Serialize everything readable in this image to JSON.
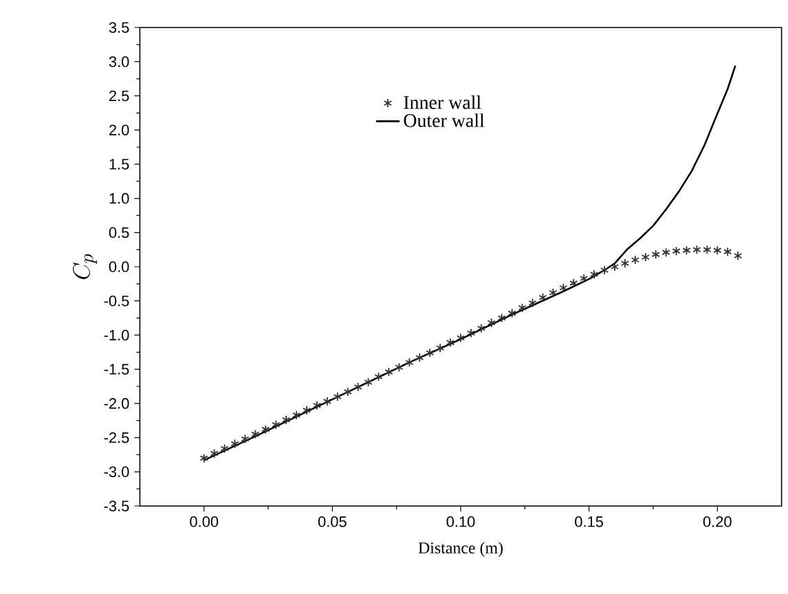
{
  "chart_data": {
    "type": "line",
    "xlabel": "Distance (m)",
    "ylabel": "C_p",
    "xlim": [
      -0.025,
      0.225
    ],
    "ylim": [
      -3.5,
      3.5
    ],
    "xticks": [
      {
        "value": 0,
        "label": "0.00"
      },
      {
        "value": 0.05,
        "label": "0.05"
      },
      {
        "value": 0.1,
        "label": "0.10"
      },
      {
        "value": 0.15,
        "label": "0.15"
      },
      {
        "value": 0.2,
        "label": "0.20"
      }
    ],
    "yticks": [
      {
        "value": -3.5,
        "label": "-3.5"
      },
      {
        "value": -3,
        "label": "-3.0"
      },
      {
        "value": -2.5,
        "label": "-2.5"
      },
      {
        "value": -2,
        "label": "-2.0"
      },
      {
        "value": -1.5,
        "label": "-1.5"
      },
      {
        "value": -1,
        "label": "-1.0"
      },
      {
        "value": -0.5,
        "label": "-0.5"
      },
      {
        "value": 0,
        "label": "0.0"
      },
      {
        "value": 0.5,
        "label": "0.5"
      },
      {
        "value": 1,
        "label": "1.0"
      },
      {
        "value": 1.5,
        "label": "1.5"
      },
      {
        "value": 2,
        "label": "2.0"
      },
      {
        "value": 2.5,
        "label": "2.5"
      },
      {
        "value": 3,
        "label": "3.0"
      },
      {
        "value": 3.5,
        "label": "3.5"
      }
    ],
    "legend": "top",
    "grid": false,
    "series": [
      {
        "name": "Inner wall",
        "type": "scatter",
        "marker": "cross",
        "color": "#333333",
        "x": [
          0,
          0.004,
          0.008,
          0.012,
          0.016,
          0.02,
          0.024,
          0.028,
          0.032,
          0.036,
          0.04,
          0.044,
          0.048,
          0.052,
          0.056,
          0.06,
          0.064,
          0.068,
          0.072,
          0.076,
          0.08,
          0.084,
          0.088,
          0.092,
          0.096,
          0.1,
          0.104,
          0.108,
          0.112,
          0.116,
          0.12,
          0.124,
          0.128,
          0.132,
          0.136,
          0.14,
          0.144,
          0.148,
          0.152,
          0.156,
          0.16,
          0.164,
          0.168,
          0.172,
          0.176,
          0.18,
          0.184,
          0.188,
          0.192,
          0.196,
          0.2,
          0.204,
          0.208
        ],
        "values": [
          -2.8,
          -2.73,
          -2.66,
          -2.59,
          -2.52,
          -2.45,
          -2.38,
          -2.31,
          -2.24,
          -2.17,
          -2.1,
          -2.03,
          -1.97,
          -1.9,
          -1.83,
          -1.76,
          -1.69,
          -1.61,
          -1.54,
          -1.47,
          -1.4,
          -1.33,
          -1.26,
          -1.19,
          -1.11,
          -1.04,
          -0.97,
          -0.9,
          -0.82,
          -0.75,
          -0.68,
          -0.6,
          -0.53,
          -0.45,
          -0.38,
          -0.31,
          -0.24,
          -0.17,
          -0.11,
          -0.05,
          0.0,
          0.05,
          0.1,
          0.14,
          0.18,
          0.21,
          0.23,
          0.24,
          0.25,
          0.25,
          0.24,
          0.22,
          0.16
        ]
      },
      {
        "name": "Outer wall",
        "marker": "none",
        "line_style": "solid",
        "color": "#000000",
        "x": [
          0,
          0.02,
          0.04,
          0.06,
          0.08,
          0.1,
          0.12,
          0.14,
          0.15,
          0.156,
          0.16,
          0.165,
          0.17,
          0.175,
          0.18,
          0.185,
          0.19,
          0.195,
          0.2,
          0.204,
          0.207
        ],
        "values": [
          -2.83,
          -2.48,
          -2.12,
          -1.76,
          -1.4,
          -1.06,
          -0.7,
          -0.36,
          -0.18,
          -0.05,
          0.05,
          0.26,
          0.42,
          0.6,
          0.84,
          1.1,
          1.4,
          1.78,
          2.24,
          2.6,
          2.94
        ]
      }
    ]
  }
}
